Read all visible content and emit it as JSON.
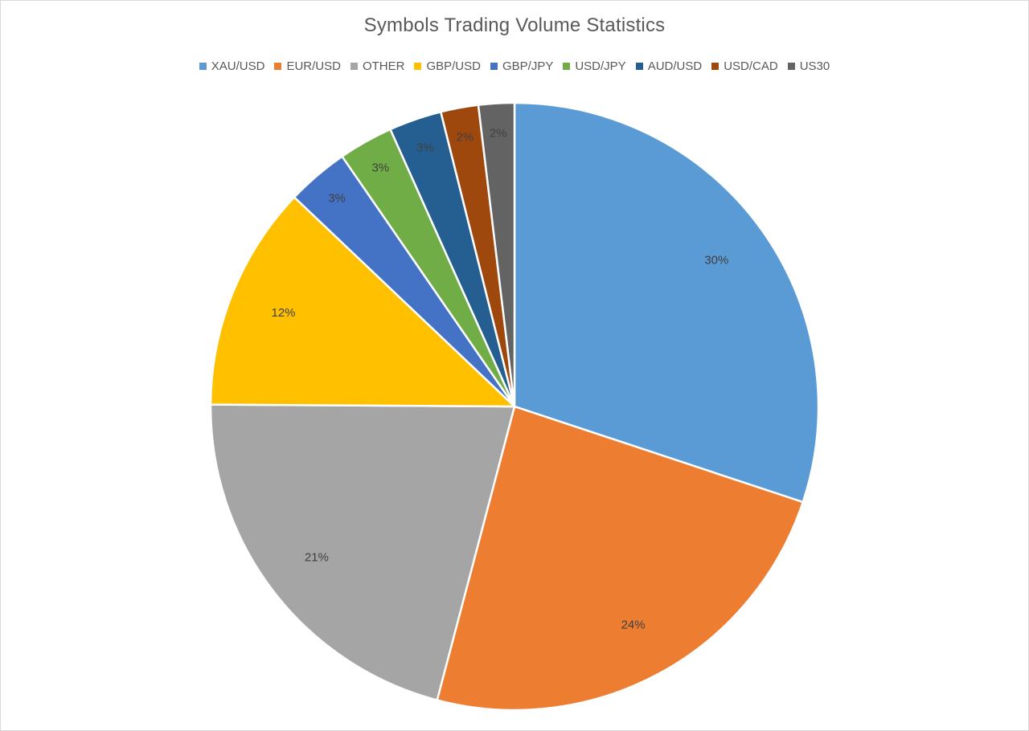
{
  "chart_data": {
    "type": "pie",
    "title": "Symbols Trading Volume Statistics",
    "legend_position": "top",
    "start_angle_deg": 0,
    "direction": "clockwise",
    "slices": [
      {
        "label": "XAU/USD",
        "value": 30.1,
        "display": "30%",
        "color": "#5b9bd5"
      },
      {
        "label": "EUR/USD",
        "value": 24.0,
        "display": "24%",
        "color": "#ed7d31"
      },
      {
        "label": "OTHER",
        "value": 21.0,
        "display": "21%",
        "color": "#a5a5a5"
      },
      {
        "label": "GBP/USD",
        "value": 12.0,
        "display": "12%",
        "color": "#ffc000"
      },
      {
        "label": "GBP/JPY",
        "value": 3.3,
        "display": "3%",
        "color": "#4472c4"
      },
      {
        "label": "USD/JPY",
        "value": 2.9,
        "display": "3%",
        "color": "#70ad47"
      },
      {
        "label": "AUD/USD",
        "value": 2.8,
        "display": "3%",
        "color": "#255e91"
      },
      {
        "label": "USD/CAD",
        "value": 2.0,
        "display": "2%",
        "color": "#9e480e"
      },
      {
        "label": "US30",
        "value": 1.9,
        "display": "2%",
        "color": "#636363"
      }
    ]
  }
}
